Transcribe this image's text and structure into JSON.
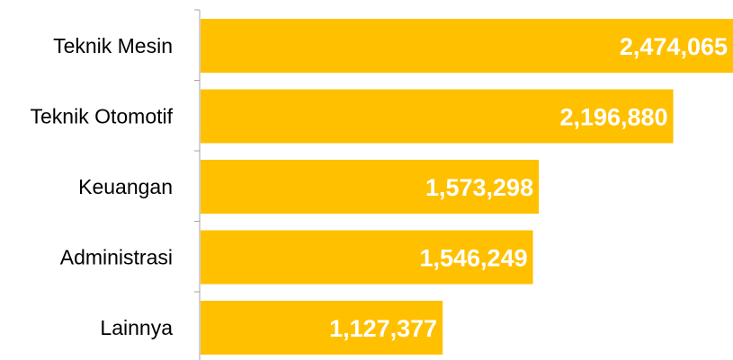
{
  "chart_data": {
    "type": "bar",
    "orientation": "horizontal",
    "categories": [
      "Teknik Mesin",
      "Teknik Otomotif",
      "Keuangan",
      "Administrasi",
      "Lainnya"
    ],
    "values": [
      2474065,
      2196880,
      1573298,
      1546249,
      1127377
    ],
    "value_labels": [
      "2,474,065",
      "2,196,880",
      "1,573,298",
      "1,546,249",
      "1,127,377"
    ],
    "title": "",
    "xlabel": "",
    "ylabel": "",
    "grid": false,
    "legend": "none",
    "bar_color": "#FFC000",
    "value_label_color": "#FFFFFF",
    "axis_color": "#A6A6A6"
  }
}
